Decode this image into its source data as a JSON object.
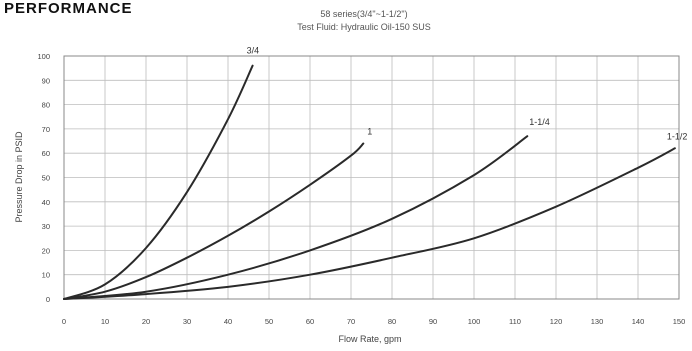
{
  "heading": "PERFORMANCE",
  "chart_data": {
    "type": "line",
    "title": "",
    "subtitle_lines": [
      "58 series(3/4\"~1-1/2\")",
      "Test Fluid: Hydraulic Oil-150 SUS"
    ],
    "xlabel": "Flow Rate, gpm",
    "ylabel": "Pressure Drop in PSID",
    "xlim": [
      0,
      150
    ],
    "ylim": [
      0,
      100
    ],
    "xticks": [
      0,
      10,
      20,
      30,
      40,
      50,
      60,
      70,
      80,
      90,
      100,
      110,
      120,
      130,
      140,
      150
    ],
    "xtick_labels": [
      "0",
      "10",
      "20",
      "30",
      "40",
      "50",
      "60",
      "70",
      "80",
      "90",
      "100",
      "110",
      "120",
      "130",
      "140",
      "150"
    ],
    "yticks": [
      0,
      10,
      20,
      30,
      40,
      50,
      60,
      70,
      80,
      90,
      100
    ],
    "ytick_labels": [
      "0",
      "10",
      "20",
      "30",
      "40",
      "50",
      "60",
      "70",
      "80",
      "90",
      "100"
    ],
    "grid": true,
    "series": [
      {
        "name": "3/4",
        "x": [
          0,
          10,
          20,
          30,
          40,
          46
        ],
        "y": [
          0,
          6,
          21,
          44,
          74,
          96
        ]
      },
      {
        "name": "1",
        "x": [
          0,
          10,
          20,
          30,
          40,
          50,
          60,
          70,
          73
        ],
        "y": [
          0,
          3,
          9,
          17,
          26,
          36,
          47,
          59,
          64
        ]
      },
      {
        "name": "1-1/4",
        "x": [
          0,
          20,
          40,
          60,
          80,
          100,
          113
        ],
        "y": [
          0,
          3,
          10,
          20,
          33,
          51,
          67
        ]
      },
      {
        "name": "1-1/2",
        "x": [
          0,
          20,
          40,
          60,
          80,
          100,
          120,
          140,
          149
        ],
        "y": [
          0,
          2,
          5,
          10,
          17,
          25,
          38,
          54,
          62
        ]
      }
    ]
  }
}
